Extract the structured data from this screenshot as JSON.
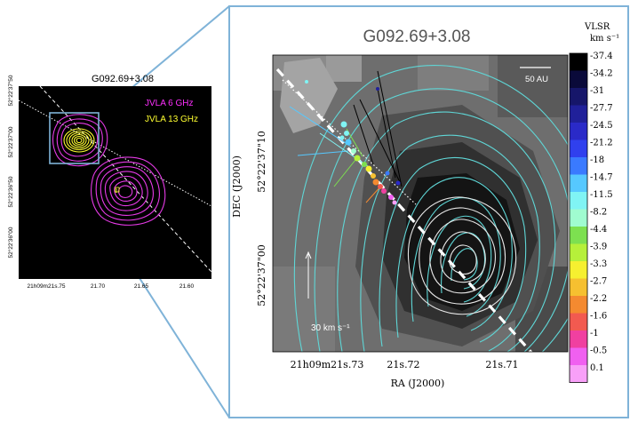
{
  "left_panel": {
    "title": "G092.69+3.08",
    "legend": [
      "JVLA 6 GHz",
      "JVLA 13 GHz"
    ],
    "legend_colors": [
      "#ff2fff",
      "#ffff30"
    ],
    "y_ticks": [
      "52°22'37\"50",
      "52°22'37\"00",
      "52°22'36\"50",
      "52°22'36\"00"
    ],
    "x_ticks": [
      "21h09m21s.75",
      "21.70",
      "21.65",
      "21.60"
    ],
    "annotation": "0"
  },
  "right_panel": {
    "title": "G092.69+3.08",
    "scale_bar": "50 AU",
    "velocity_vector": "30 km s⁻¹",
    "ylabel": "DEC (J2000)",
    "xlabel": "RA (J2000)",
    "y_ticks": [
      "52°22'37\"10",
      "52°22'37\"00"
    ],
    "x_ticks": [
      "21h09m21s.73",
      "21s.72",
      "21s.71"
    ]
  },
  "colorbar": {
    "title_line1": "VLSR",
    "title_line2": "km s⁻¹",
    "labels": [
      "-37.4",
      "-34.2",
      "-31",
      "-27.7",
      "-24.5",
      "-21.2",
      "-18",
      "-14.7",
      "-11.5",
      "-8.2",
      "-4.4",
      "-3.9",
      "-3.3",
      "-2.7",
      "-2.2",
      "-1.6",
      "-1",
      "-0.5",
      "0.1"
    ],
    "colors": [
      "#000000",
      "#0a0a3a",
      "#16166a",
      "#20209a",
      "#2a2ac8",
      "#3040ee",
      "#3a7aff",
      "#56c8ff",
      "#80f4f4",
      "#a0fcd0",
      "#7de050",
      "#b6f03a",
      "#f6f030",
      "#f6c030",
      "#f48a30",
      "#f25a50",
      "#f040a0",
      "#f060f0",
      "#f8a0f8"
    ]
  }
}
